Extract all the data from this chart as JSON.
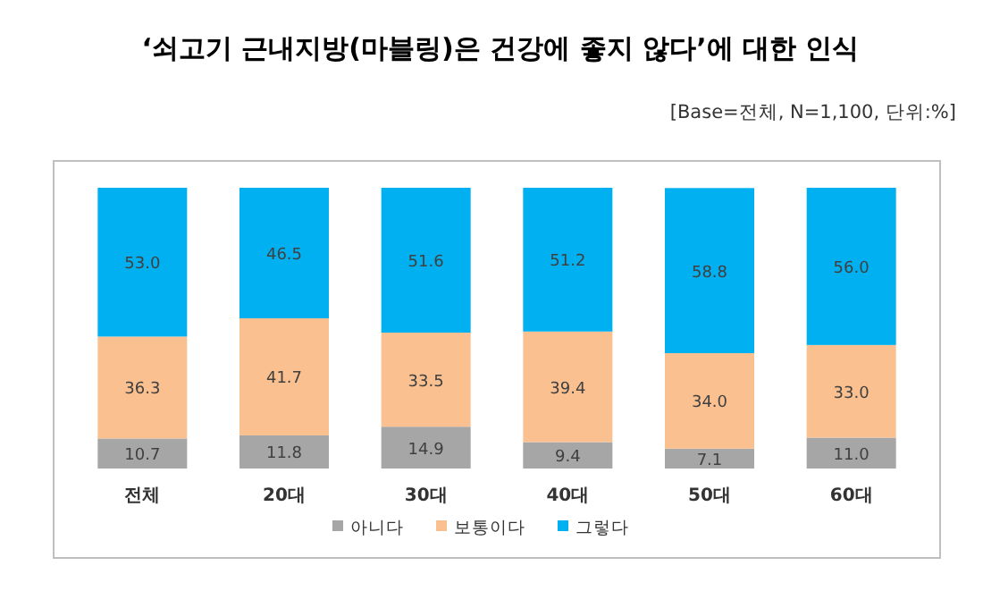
{
  "chart_data": {
    "type": "bar",
    "stacked": true,
    "legend": "bottom",
    "title": "‘쇠고기 근내지방(마블링)은 건강에 좋지 않다’에 대한 인식",
    "annotations": [
      "[Base=전체, N=1,100, 단위:%]"
    ],
    "categories": [
      "전체",
      "20대",
      "30대",
      "40대",
      "50대",
      "60대"
    ],
    "series": [
      {
        "name": "아니다",
        "color": "#a6a6a6",
        "values": [
          10.7,
          11.8,
          14.9,
          9.4,
          7.1,
          11.0
        ],
        "value_labels": [
          "10.7",
          "11.8",
          "14.9",
          "9.4",
          "7.1",
          "11.0"
        ]
      },
      {
        "name": "보통이다",
        "color": "#fac090",
        "values": [
          36.3,
          41.7,
          33.5,
          39.4,
          34.0,
          33.0
        ],
        "value_labels": [
          "36.3",
          "41.7",
          "33.5",
          "39.4",
          "34.0",
          "33.0"
        ]
      },
      {
        "name": "그렇다",
        "color": "#00b0f0",
        "values": [
          53.0,
          46.5,
          51.6,
          51.2,
          58.8,
          56.0
        ],
        "value_labels": [
          "53.0",
          "46.5",
          "51.6",
          "51.2",
          "58.8",
          "56.0"
        ]
      }
    ]
  }
}
